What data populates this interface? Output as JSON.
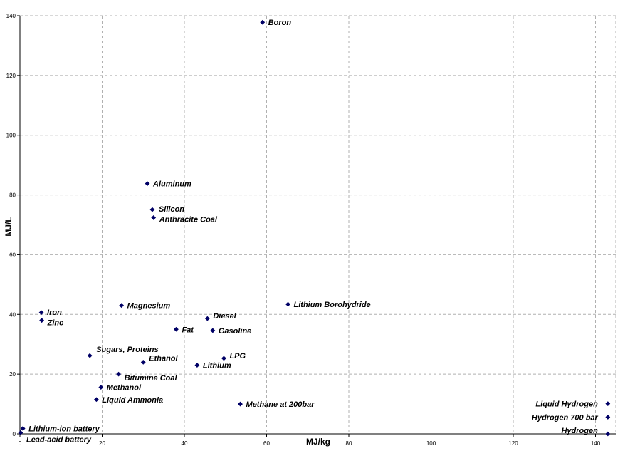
{
  "chart_data": {
    "type": "scatter",
    "title": "",
    "xlabel": "MJ/kg",
    "ylabel": "MJ/L",
    "xlim": [
      0,
      145
    ],
    "ylim": [
      0,
      140
    ],
    "x_ticks": [
      0,
      20,
      40,
      60,
      80,
      100,
      120,
      140
    ],
    "y_ticks": [
      0,
      20,
      40,
      60,
      80,
      100,
      120,
      140
    ],
    "grid": true,
    "marker_color": "#000066",
    "points": [
      {
        "name": "Boron",
        "x": 59,
        "y": 137.8
      },
      {
        "name": "Aluminum",
        "x": 31,
        "y": 83.8
      },
      {
        "name": "Silicon",
        "x": 32.2,
        "y": 75.1
      },
      {
        "name": "Anthracite Coal",
        "x": 32.5,
        "y": 72.4
      },
      {
        "name": "Iron",
        "x": 5.2,
        "y": 40.6
      },
      {
        "name": "Zinc",
        "x": 5.3,
        "y": 38.0
      },
      {
        "name": "Magnesium",
        "x": 24.7,
        "y": 43.0
      },
      {
        "name": "Lithium Borohydride",
        "x": 65.2,
        "y": 43.4
      },
      {
        "name": "Diesel",
        "x": 45.6,
        "y": 38.6
      },
      {
        "name": "Fat",
        "x": 38,
        "y": 35.0
      },
      {
        "name": "Gasoline",
        "x": 46.9,
        "y": 34.6
      },
      {
        "name": "Sugars, Proteins",
        "x": 17,
        "y": 26.2
      },
      {
        "name": "Ethanol",
        "x": 30,
        "y": 24.0
      },
      {
        "name": "LPG",
        "x": 49.6,
        "y": 25.3
      },
      {
        "name": "Lithium",
        "x": 43.1,
        "y": 23.0
      },
      {
        "name": "Bitumine Coal",
        "x": 24.0,
        "y": 20.0
      },
      {
        "name": "Methanol",
        "x": 19.7,
        "y": 15.6
      },
      {
        "name": "Liquid Ammonia",
        "x": 18.6,
        "y": 11.5
      },
      {
        "name": "Methane at 200bar",
        "x": 53.6,
        "y": 10.0
      },
      {
        "name": "Liquid Hydrogen",
        "x": 143,
        "y": 10.1
      },
      {
        "name": "Hydrogen 700 bar",
        "x": 143,
        "y": 5.6
      },
      {
        "name": "Hydrogen",
        "x": 143,
        "y": 0.0
      },
      {
        "name": "Lithium-ion battery",
        "x": 0.72,
        "y": 1.8
      },
      {
        "name": "Lead-acid battery",
        "x": 0.17,
        "y": 0.4
      }
    ]
  }
}
